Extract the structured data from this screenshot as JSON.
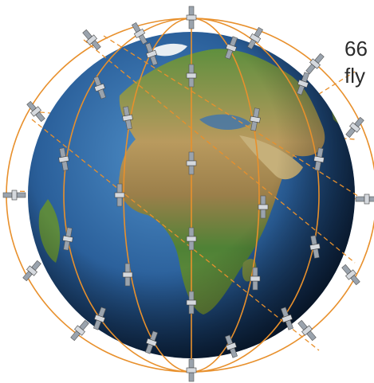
{
  "caption": {
    "line1": "66",
    "line2": "fly"
  }
}
